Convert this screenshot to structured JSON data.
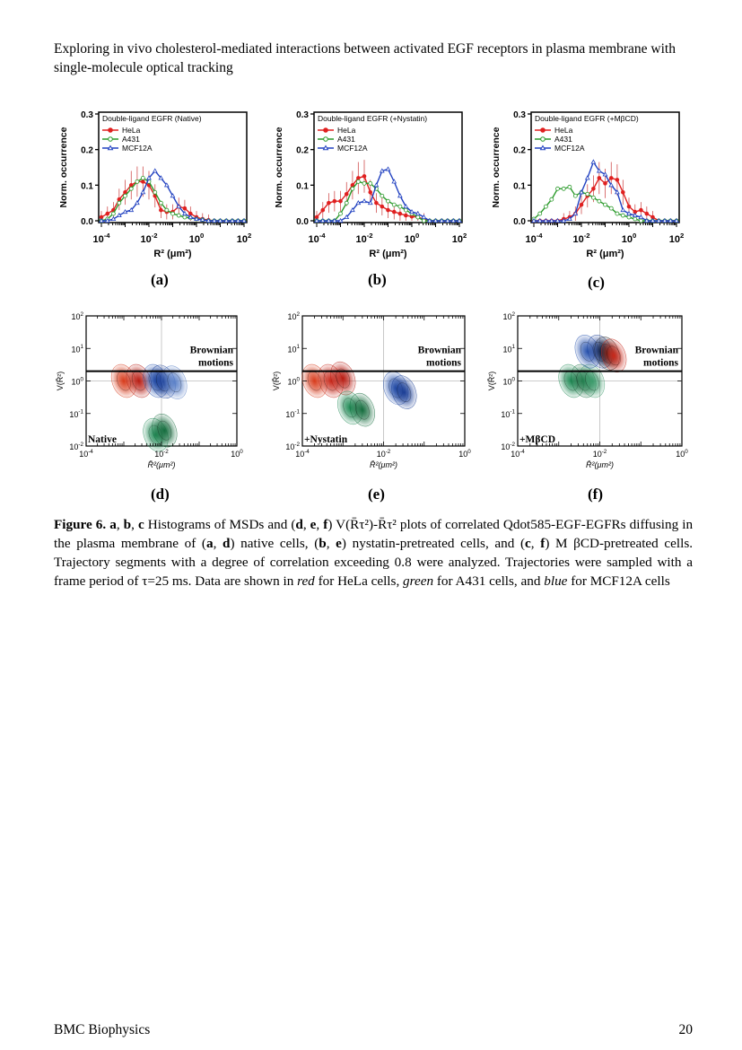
{
  "header": {
    "title": "Exploring in vivo cholesterol-mediated interactions between activated EGF receptors in plasma membrane with single-molecule optical tracking"
  },
  "figure": {
    "sublabels": [
      "(a)",
      "(b)",
      "(c)",
      "(d)",
      "(e)",
      "(f)"
    ]
  },
  "caption": {
    "label": "Figure 6.",
    "p1": " a",
    "p2": ", ",
    "p3": "b",
    "p4": ", ",
    "p5": "c",
    "p6": " Histograms of MSDs and (",
    "p7": "d",
    "p8": ", ",
    "p9": "e",
    "p10": ", ",
    "p11": "f",
    "p12": ") V(R̄τ²)-R̄τ² plots of correlated Qdot585-EGF-EGFRs diffusing in the plasma membrane of (",
    "p13": "a",
    "p14": ", ",
    "p15": "d",
    "p16": ") native cells, (",
    "p17": "b",
    "p18": ", ",
    "p19": "e",
    "p20": ") nystatin-pretreated cells, and (",
    "p21": "c",
    "p22": ", ",
    "p23": "f",
    "p24": ") M βCD-pretreated cells. Trajectory segments with a degree of correlation exceeding 0.8 were analyzed. Trajectories were sampled with a frame period of τ=25 ms. Data are shown in ",
    "red": "red",
    "p25": " for HeLa cells, ",
    "green": "green",
    "p26": " for A431 cells, and ",
    "blue": "blue",
    "p27": " for MCF12A cells"
  },
  "footer": {
    "journal": "BMC Biophysics",
    "page": "20"
  },
  "chart_data": [
    {
      "type": "line",
      "panel": "(a)",
      "legend_title": "Double-ligand EGFR (Native)",
      "legend_position": "top-left",
      "xlabel": "R² (μm²)",
      "ylabel": "Norm. occurrence",
      "xscale": "log",
      "xlim": [
        0.0001,
        100
      ],
      "ylim": [
        0,
        0.3
      ],
      "xticks": [
        "10^-4",
        "10^-2",
        "10^0",
        "10^2"
      ],
      "yticks": [
        "0.0",
        "0.1",
        "0.2",
        "0.3"
      ],
      "x": [
        0.0001,
        0.00018,
        0.00032,
        0.00056,
        0.001,
        0.0018,
        0.0032,
        0.0056,
        0.01,
        0.018,
        0.032,
        0.056,
        0.1,
        0.18,
        0.32,
        0.56,
        1,
        1.8,
        3.2,
        5.6,
        10,
        18,
        32,
        56,
        100
      ],
      "series": [
        {
          "name": "HeLa",
          "color": "#e02020",
          "marker": "filled-circle",
          "errorbars": true,
          "values": [
            0.01,
            0.02,
            0.03,
            0.06,
            0.08,
            0.1,
            0.11,
            0.11,
            0.1,
            0.07,
            0.03,
            0.025,
            0.025,
            0.04,
            0.035,
            0.02,
            0.01,
            0.005,
            0.002,
            0,
            0,
            0,
            0,
            0,
            0
          ]
        },
        {
          "name": "A431",
          "color": "#2a9a2a",
          "marker": "open-circle",
          "values": [
            0,
            0.005,
            0.02,
            0.05,
            0.07,
            0.09,
            0.11,
            0.12,
            0.11,
            0.08,
            0.05,
            0.03,
            0.02,
            0.015,
            0.01,
            0.008,
            0.005,
            0.003,
            0,
            0,
            0,
            0,
            0,
            0,
            0
          ]
        },
        {
          "name": "MCF12A",
          "color": "#2040c0",
          "marker": "open-triangle",
          "values": [
            0,
            0,
            0.005,
            0.015,
            0.025,
            0.03,
            0.05,
            0.08,
            0.12,
            0.14,
            0.12,
            0.1,
            0.07,
            0.04,
            0.02,
            0.01,
            0.005,
            0.003,
            0,
            0,
            0,
            0,
            0,
            0,
            0
          ]
        }
      ]
    },
    {
      "type": "line",
      "panel": "(b)",
      "legend_title": "Double-ligand EGFR (+Nystatin)",
      "legend_position": "top-left",
      "xlabel": "R² (μm²)",
      "ylabel": "Norm. occurrence",
      "xscale": "log",
      "xlim": [
        0.0001,
        100
      ],
      "ylim": [
        0,
        0.3
      ],
      "xticks": [
        "10^-4",
        "10^-2",
        "10^0",
        "10^2"
      ],
      "yticks": [
        "0.0",
        "0.1",
        "0.2",
        "0.3"
      ],
      "x": [
        0.0001,
        0.00018,
        0.00032,
        0.00056,
        0.001,
        0.0018,
        0.0032,
        0.0056,
        0.01,
        0.018,
        0.032,
        0.056,
        0.1,
        0.18,
        0.32,
        0.56,
        1,
        1.8,
        3.2,
        5.6,
        10,
        18,
        32,
        56,
        100
      ],
      "series": [
        {
          "name": "HeLa",
          "color": "#e02020",
          "marker": "filled-circle",
          "errorbars": true,
          "values": [
            0.01,
            0.03,
            0.05,
            0.055,
            0.055,
            0.075,
            0.1,
            0.12,
            0.125,
            0.08,
            0.05,
            0.04,
            0.03,
            0.025,
            0.02,
            0.015,
            0.012,
            0.01,
            0.005,
            0,
            0,
            0,
            0,
            0,
            0
          ]
        },
        {
          "name": "A431",
          "color": "#2a9a2a",
          "marker": "open-circle",
          "values": [
            0,
            0,
            0,
            0,
            0.02,
            0.05,
            0.09,
            0.11,
            0.105,
            0.105,
            0.09,
            0.07,
            0.055,
            0.045,
            0.04,
            0.03,
            0.02,
            0.01,
            0,
            0,
            0,
            0,
            0,
            0,
            0
          ]
        },
        {
          "name": "MCF12A",
          "color": "#2040c0",
          "marker": "open-triangle",
          "values": [
            0,
            0,
            0,
            0,
            0,
            0.01,
            0.03,
            0.05,
            0.055,
            0.05,
            0.1,
            0.14,
            0.145,
            0.11,
            0.07,
            0.04,
            0.025,
            0.02,
            0.01,
            0,
            0,
            0,
            0,
            0,
            0
          ]
        }
      ]
    },
    {
      "type": "line",
      "panel": "(c)",
      "legend_title": "Double-ligand EGFR (+MβCD)",
      "legend_position": "top-left",
      "xlabel": "R² (μm²)",
      "ylabel": "Norm. occurrence",
      "xscale": "log",
      "xlim": [
        0.0001,
        100
      ],
      "ylim": [
        0,
        0.3
      ],
      "xticks": [
        "10^-4",
        "10^-2",
        "10^0",
        "10^2"
      ],
      "yticks": [
        "0.0",
        "0.1",
        "0.2",
        "0.3"
      ],
      "x": [
        0.0001,
        0.00018,
        0.00032,
        0.00056,
        0.001,
        0.0018,
        0.0032,
        0.0056,
        0.01,
        0.018,
        0.032,
        0.056,
        0.1,
        0.18,
        0.32,
        0.56,
        1,
        1.8,
        3.2,
        5.6,
        10,
        18,
        32,
        56,
        100
      ],
      "series": [
        {
          "name": "HeLa",
          "color": "#e02020",
          "marker": "filled-circle",
          "errorbars": true,
          "values": [
            0,
            0,
            0,
            0,
            0,
            0.005,
            0.01,
            0.02,
            0.045,
            0.07,
            0.09,
            0.12,
            0.105,
            0.12,
            0.115,
            0.08,
            0.04,
            0.025,
            0.03,
            0.02,
            0.01,
            0,
            0,
            0,
            0
          ]
        },
        {
          "name": "A431",
          "color": "#2a9a2a",
          "marker": "open-circle",
          "values": [
            0.005,
            0.02,
            0.04,
            0.06,
            0.09,
            0.09,
            0.095,
            0.07,
            0.08,
            0.075,
            0.065,
            0.055,
            0.045,
            0.035,
            0.02,
            0.015,
            0.01,
            0.005,
            0,
            0,
            0,
            0,
            0,
            0,
            0
          ]
        },
        {
          "name": "MCF12A",
          "color": "#2040c0",
          "marker": "open-triangle",
          "values": [
            0,
            0,
            0,
            0,
            0,
            0,
            0.005,
            0.02,
            0.08,
            0.12,
            0.165,
            0.14,
            0.13,
            0.1,
            0.08,
            0.03,
            0.02,
            0.015,
            0.01,
            0,
            0,
            0,
            0,
            0,
            0
          ]
        }
      ]
    },
    {
      "type": "heatmap",
      "panel": "(d)",
      "annotation": "Native",
      "region_label": [
        "Brownian",
        "motions"
      ],
      "xlabel": "R̄²(μm²)",
      "ylabel": "V(R̄²)",
      "xscale": "log",
      "yscale": "log",
      "xlim": [
        0.0001,
        1
      ],
      "ylim": [
        0.01,
        100
      ],
      "xticks": [
        "10^-4",
        "10^-2",
        "10^0"
      ],
      "yticks": [
        "10^-2",
        "10^-1",
        "10^0",
        "10^1",
        "10^2"
      ],
      "threshold_V": 2,
      "clusters": [
        {
          "cell": "HeLa",
          "color": "#d83a1a",
          "x": 0.001,
          "y": 1.0
        },
        {
          "cell": "HeLa",
          "color": "#b81a10",
          "x": 0.0025,
          "y": 1.0
        },
        {
          "cell": "MCF12A",
          "color": "#2a55b0",
          "x": 0.007,
          "y": 1.0
        },
        {
          "cell": "MCF12A",
          "color": "#1a3d95",
          "x": 0.011,
          "y": 0.95
        },
        {
          "cell": "MCF12A",
          "color": "#5a80c8",
          "x": 0.022,
          "y": 0.9
        },
        {
          "cell": "A431",
          "color": "#1f8a55",
          "x": 0.007,
          "y": 0.022
        },
        {
          "cell": "A431",
          "color": "#136b3c",
          "x": 0.012,
          "y": 0.03
        }
      ]
    },
    {
      "type": "heatmap",
      "panel": "(e)",
      "annotation": "+Nystatin",
      "region_label": [
        "Brownian",
        "motions"
      ],
      "xlabel": "R̄²(μm²)",
      "ylabel": "V(R̄²)",
      "xscale": "log",
      "yscale": "log",
      "xlim": [
        0.0001,
        1
      ],
      "ylim": [
        0.01,
        100
      ],
      "xticks": [
        "10^-4",
        "10^-2",
        "10^0"
      ],
      "yticks": [
        "10^-2",
        "10^-1",
        "10^0",
        "10^1",
        "10^2"
      ],
      "threshold_V": 2,
      "clusters": [
        {
          "cell": "HeLa",
          "color": "#d83a1a",
          "x": 0.0002,
          "y": 1.0
        },
        {
          "cell": "HeLa",
          "color": "#c8281a",
          "x": 0.0005,
          "y": 1.0
        },
        {
          "cell": "HeLa",
          "color": "#b81a10",
          "x": 0.001,
          "y": 1.2
        },
        {
          "cell": "A431",
          "color": "#1f8a55",
          "x": 0.0015,
          "y": 0.15
        },
        {
          "cell": "A431",
          "color": "#136b3c",
          "x": 0.003,
          "y": 0.13
        },
        {
          "cell": "MCF12A",
          "color": "#2a55b0",
          "x": 0.02,
          "y": 0.6
        },
        {
          "cell": "MCF12A",
          "color": "#1a3d95",
          "x": 0.032,
          "y": 0.45
        }
      ]
    },
    {
      "type": "heatmap",
      "panel": "(f)",
      "annotation": "+MβCD",
      "region_label": [
        "Brownian",
        "motions"
      ],
      "xlabel": "R̄²(μm²)",
      "ylabel": "V(R̄²)",
      "xscale": "log",
      "yscale": "log",
      "xlim": [
        0.0001,
        1
      ],
      "ylim": [
        0.01,
        100
      ],
      "xticks": [
        "10^-4",
        "10^-2",
        "10^0"
      ],
      "yticks": [
        "10^-2",
        "10^-1",
        "10^0",
        "10^1",
        "10^2"
      ],
      "threshold_V": 2,
      "clusters": [
        {
          "cell": "A431",
          "color": "#1f8a55",
          "x": 0.002,
          "y": 1.0
        },
        {
          "cell": "A431",
          "color": "#136b3c",
          "x": 0.004,
          "y": 1.0
        },
        {
          "cell": "A431",
          "color": "#3a9a6a",
          "x": 0.0065,
          "y": 1.0
        },
        {
          "cell": "MCF12A",
          "color": "#2a55b0",
          "x": 0.005,
          "y": 8
        },
        {
          "cell": "MCF12A",
          "color": "#1a3d95",
          "x": 0.01,
          "y": 8
        },
        {
          "cell": "overlap",
          "color": "#202020",
          "x": 0.015,
          "y": 7
        },
        {
          "cell": "HeLa",
          "color": "#c8281a",
          "x": 0.022,
          "y": 6
        }
      ]
    }
  ]
}
